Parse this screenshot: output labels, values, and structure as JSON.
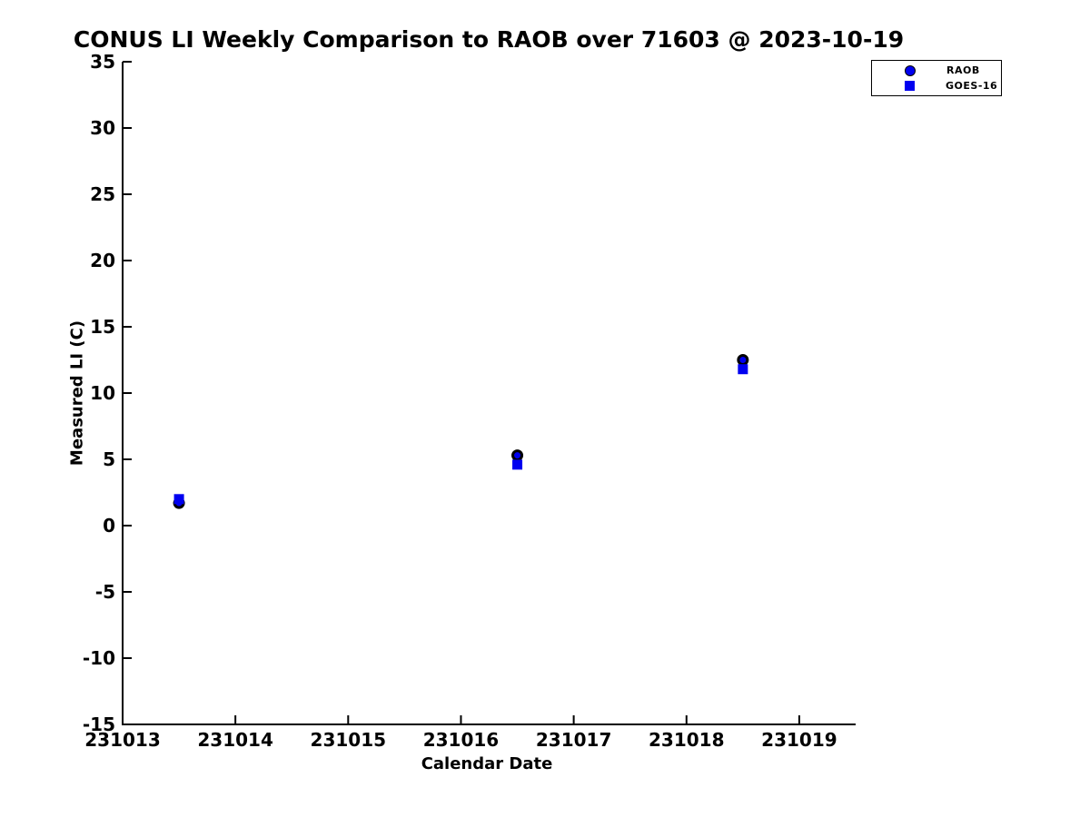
{
  "chart_data": {
    "type": "scatter",
    "title": "CONUS LI Weekly Comparison to RAOB over 71603 @ 2023-10-19",
    "xlabel": "Calendar Date",
    "ylabel": "Measured LI (C)",
    "xlim": [
      231013,
      231019.5
    ],
    "ylim": [
      -15,
      35
    ],
    "xticks": [
      231013,
      231014,
      231015,
      231016,
      231017,
      231018,
      231019
    ],
    "yticks": [
      -15,
      -10,
      -5,
      0,
      5,
      10,
      15,
      20,
      25,
      30,
      35
    ],
    "grid": false,
    "legend_position": "upper right",
    "axis_color": "#000000",
    "background_color": "#ffffff",
    "series": [
      {
        "name": "RAOB",
        "marker": "circle",
        "fill": "#0000f0",
        "edge": "#000000",
        "x": [
          231013.5,
          231016.5,
          231018.5
        ],
        "y": [
          1.7,
          5.3,
          12.5
        ]
      },
      {
        "name": "GOES-16",
        "marker": "square",
        "fill": "#0000f0",
        "edge": "none",
        "x": [
          231013.5,
          231016.5,
          231018.5
        ],
        "y": [
          2.0,
          4.6,
          11.8
        ]
      }
    ]
  }
}
